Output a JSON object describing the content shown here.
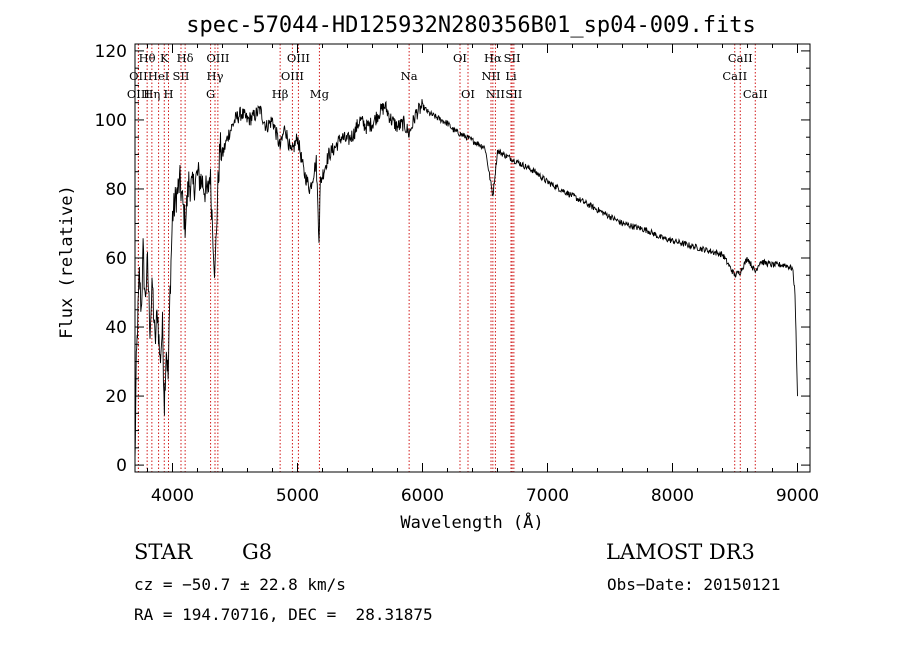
{
  "chart_data": {
    "type": "line",
    "title": "spec-57044-HD125932N280356B01_sp04-009.fits",
    "xlabel": "Wavelength (Å)",
    "ylabel": "Flux (relative)",
    "xlim": [
      3700,
      9100
    ],
    "ylim": [
      -2,
      122
    ],
    "xticks": [
      4000,
      5000,
      6000,
      7000,
      8000,
      9000
    ],
    "yticks": [
      0,
      20,
      40,
      60,
      80,
      100,
      120
    ],
    "series": [
      {
        "name": "flux",
        "x": [
          3700,
          3710,
          3720,
          3735,
          3750,
          3765,
          3780,
          3800,
          3820,
          3840,
          3860,
          3880,
          3900,
          3920,
          3935,
          3950,
          3965,
          3980,
          4000,
          4030,
          4060,
          4080,
          4101,
          4130,
          4160,
          4200,
          4240,
          4280,
          4300,
          4320,
          4340,
          4360,
          4380,
          4400,
          4450,
          4500,
          4550,
          4600,
          4650,
          4700,
          4750,
          4800,
          4861,
          4900,
          4950,
          5000,
          5050,
          5100,
          5150,
          5172,
          5183,
          5200,
          5250,
          5300,
          5350,
          5400,
          5450,
          5500,
          5550,
          5600,
          5650,
          5700,
          5750,
          5800,
          5850,
          5893,
          5950,
          6000,
          6050,
          6100,
          6150,
          6200,
          6250,
          6300,
          6350,
          6400,
          6450,
          6500,
          6563,
          6600,
          6650,
          6700,
          6800,
          6900,
          7000,
          7100,
          7200,
          7300,
          7400,
          7500,
          7600,
          7700,
          7800,
          7900,
          8000,
          8100,
          8200,
          8300,
          8400,
          8498,
          8542,
          8600,
          8662,
          8700,
          8800,
          8900,
          8960,
          8980,
          9000
        ],
        "y": [
          0,
          28,
          40,
          55,
          45,
          62,
          48,
          58,
          40,
          52,
          35,
          45,
          30,
          40,
          18,
          35,
          25,
          50,
          72,
          78,
          82,
          76,
          70,
          82,
          80,
          84,
          82,
          78,
          85,
          70,
          55,
          78,
          92,
          90,
          96,
          100,
          102,
          100,
          101,
          103,
          98,
          100,
          92,
          98,
          90,
          95,
          85,
          80,
          88,
          66,
          82,
          84,
          90,
          92,
          95,
          94,
          96,
          100,
          98,
          99,
          102,
          104,
          100,
          98,
          99,
          96,
          102,
          104,
          102,
          101,
          100,
          99,
          97,
          96,
          95,
          94,
          93,
          92,
          78,
          91,
          90,
          89,
          87,
          85,
          82,
          80,
          78,
          76,
          74,
          72,
          70,
          69,
          68,
          66,
          65,
          64,
          63,
          62,
          61,
          55,
          56,
          60,
          56,
          59,
          58,
          58,
          57,
          50,
          20
        ]
      }
    ],
    "lines": [
      {
        "label": "Hθ",
        "x": 3797,
        "row": 0
      },
      {
        "label": "OII",
        "x": 3727,
        "row": 1
      },
      {
        "label": "OIII",
        "x": 3727,
        "row": 2
      },
      {
        "label": "K",
        "x": 3934,
        "row": 0
      },
      {
        "label": "HeI",
        "x": 3889,
        "row": 1
      },
      {
        "label": "Hη",
        "x": 3835,
        "row": 2
      },
      {
        "label": "SII",
        "x": 4068,
        "row": 1
      },
      {
        "label": "H",
        "x": 3968,
        "row": 2
      },
      {
        "label": "Hδ",
        "x": 4101,
        "row": 0
      },
      {
        "label": "OIII",
        "x": 4363,
        "row": 0
      },
      {
        "label": "Hγ",
        "x": 4340,
        "row": 1
      },
      {
        "label": "G",
        "x": 4305,
        "row": 2
      },
      {
        "label": "OIII",
        "x": 5007,
        "row": 0
      },
      {
        "label": "OIII",
        "x": 4959,
        "row": 1
      },
      {
        "label": "Hβ",
        "x": 4861,
        "row": 2
      },
      {
        "label": "Mg",
        "x": 5175,
        "row": 2
      },
      {
        "label": "Na",
        "x": 5893,
        "row": 1
      },
      {
        "label": "OI",
        "x": 6300,
        "row": 0
      },
      {
        "label": "OI",
        "x": 6364,
        "row": 2
      },
      {
        "label": "Hα",
        "x": 6563,
        "row": 0
      },
      {
        "label": "SII",
        "x": 6717,
        "row": 0
      },
      {
        "label": "NII",
        "x": 6548,
        "row": 1
      },
      {
        "label": "Li",
        "x": 6708,
        "row": 1
      },
      {
        "label": "NII",
        "x": 6583,
        "row": 2
      },
      {
        "label": "SII",
        "x": 6731,
        "row": 2
      },
      {
        "label": "CaII",
        "x": 8542,
        "row": 0
      },
      {
        "label": "CaII",
        "x": 8498,
        "row": 1
      },
      {
        "label": "CaII",
        "x": 8662,
        "row": 2
      }
    ]
  },
  "info": {
    "class": "STAR",
    "subclass": "G8",
    "survey": "LAMOST DR3",
    "cz": "cz = −50.7 ± 22.8 km/s",
    "obs_date": "Obs−Date: 20150121",
    "coords": "RA = 194.70716, DEC =  28.31875"
  }
}
